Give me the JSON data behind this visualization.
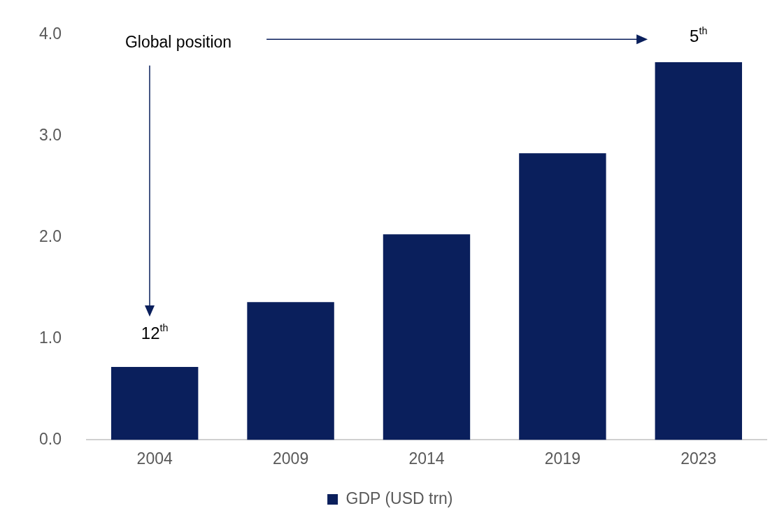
{
  "chart_data": {
    "type": "bar",
    "categories": [
      "2004",
      "2009",
      "2014",
      "2019",
      "2023"
    ],
    "series": [
      {
        "name": "GDP (USD trn)",
        "color": "#0a1f5c",
        "values": [
          0.72,
          1.36,
          2.03,
          2.83,
          3.73
        ]
      }
    ],
    "ylim": [
      0,
      4
    ],
    "yticks": [
      {
        "value": 0,
        "label": "0.0"
      },
      {
        "value": 1,
        "label": "1.0"
      },
      {
        "value": 2,
        "label": "2.0"
      },
      {
        "value": 3,
        "label": "3.0"
      },
      {
        "value": 4,
        "label": "4.0"
      }
    ],
    "grid": false,
    "legend": "bottom",
    "annotations": [
      "Global position",
      "12$^{th}$",
      "5$^{th}$"
    ]
  }
}
